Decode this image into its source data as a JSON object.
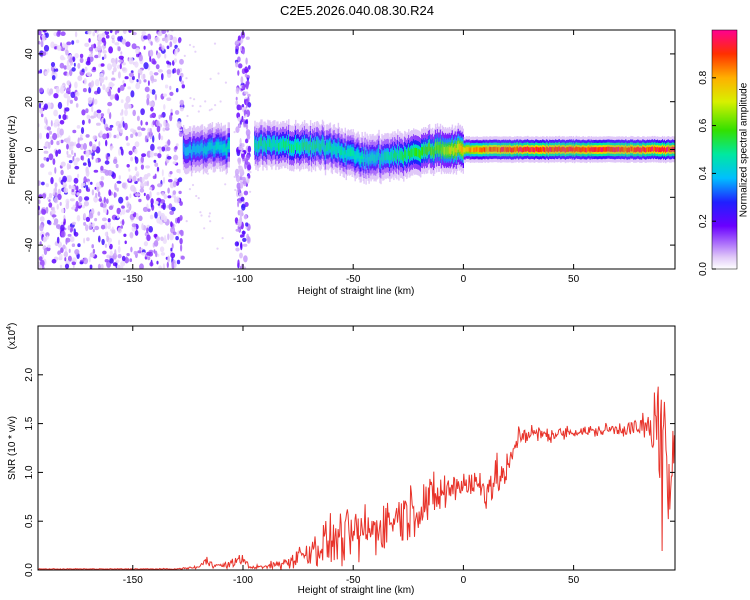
{
  "title": "C2E5.2026.040.08.30.R24",
  "chart_data": [
    {
      "type": "heatmap",
      "title": "C2E5.2026.040.08.30.R24",
      "xlabel": "Height of straight line (km)",
      "ylabel": "Frequency (Hz)",
      "xlim": [
        -193,
        96
      ],
      "ylim": [
        -50,
        50
      ],
      "x_ticks": [
        -150,
        -100,
        -50,
        0,
        50
      ],
      "x_tick_labels": [
        "-150",
        "-100",
        "-50",
        "0",
        "50"
      ],
      "y_ticks": [
        -40,
        -20,
        0,
        20,
        40
      ],
      "y_tick_labels": [
        "-40",
        "-20",
        "0",
        "20",
        "40"
      ],
      "colorbar": {
        "label": "Normalized spectral amplitude",
        "range": [
          0,
          1
        ],
        "ticks": [
          0.0,
          0.2,
          0.4,
          0.6,
          0.8
        ],
        "tick_labels": [
          "0.0",
          "0.2",
          "0.4",
          "0.6",
          "0.8"
        ]
      },
      "ridge": {
        "center_hz": [
          [
            -127,
            0
          ],
          [
            -95,
            2
          ],
          [
            -60,
            1
          ],
          [
            -45,
            -4
          ],
          [
            -25,
            -2
          ],
          [
            -15,
            0
          ],
          [
            0,
            0
          ],
          [
            95,
            0
          ]
        ],
        "peak_amplitude": [
          [
            -127,
            0.4
          ],
          [
            -95,
            0.5
          ],
          [
            -60,
            0.5
          ],
          [
            -40,
            0.45
          ],
          [
            -15,
            0.6
          ],
          [
            0,
            0.8
          ],
          [
            20,
            0.95
          ],
          [
            95,
            0.95
          ]
        ]
      },
      "noise_region_km": [
        -193,
        -127
      ],
      "noise_strip_km": [
        -103,
        -97
      ]
    },
    {
      "type": "line",
      "xlabel": "Height of straight line (km)",
      "ylabel": "SNR (10 * v/v)",
      "scale_label": "(x10",
      "scale_exponent": "4",
      "scale_suffix": ")",
      "xlim": [
        -193,
        96
      ],
      "ylim": [
        0,
        2.5
      ],
      "x_ticks": [
        -150,
        -100,
        -50,
        0,
        50
      ],
      "x_tick_labels": [
        "-150",
        "-100",
        "-50",
        "0",
        "50"
      ],
      "y_ticks": [
        0,
        0.5,
        1.0,
        1.5,
        2.0
      ],
      "y_tick_labels": [
        "0.0",
        "0.5",
        "1.0",
        "1.5",
        "2.0"
      ],
      "color": "#e8332a",
      "envelope": {
        "x": [
          -193,
          -130,
          -120,
          -117,
          -110,
          -105,
          -101,
          -97,
          -90,
          -80,
          -70,
          -60,
          -50,
          -40,
          -30,
          -20,
          -10,
          0,
          10,
          20,
          25,
          30,
          40,
          50,
          60,
          70,
          80,
          85,
          88,
          90,
          93,
          96
        ],
        "mean": [
          0.01,
          0.01,
          0.03,
          0.09,
          0.04,
          0.06,
          0.13,
          0.03,
          0.03,
          0.08,
          0.2,
          0.3,
          0.35,
          0.42,
          0.55,
          0.65,
          0.78,
          0.9,
          0.85,
          1.0,
          1.38,
          1.4,
          1.38,
          1.42,
          1.42,
          1.45,
          1.45,
          1.45,
          1.5,
          1.4,
          0.8,
          1.5
        ],
        "spread": [
          0.005,
          0.005,
          0.02,
          0.05,
          0.03,
          0.05,
          0.08,
          0.02,
          0.03,
          0.08,
          0.2,
          0.3,
          0.3,
          0.3,
          0.3,
          0.3,
          0.25,
          0.2,
          0.25,
          0.2,
          0.12,
          0.1,
          0.08,
          0.07,
          0.07,
          0.08,
          0.12,
          0.3,
          0.5,
          0.6,
          0.7,
          0.5
        ]
      }
    }
  ]
}
